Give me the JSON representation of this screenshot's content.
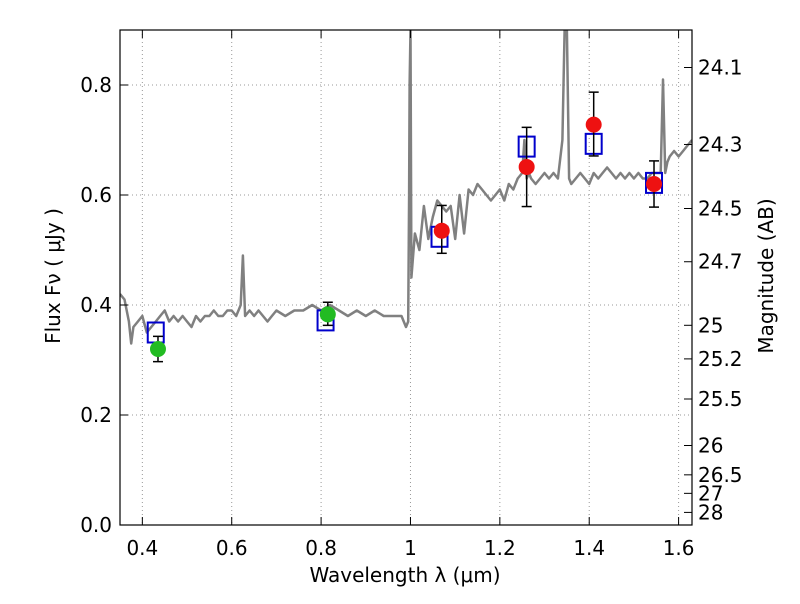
{
  "chart_data": {
    "type": "scatter",
    "xlabel": "Wavelength  λ (μm)",
    "ylabel": "Flux  Fν  ( μJy )",
    "y2label": "Magnitude (AB)",
    "xlim": [
      0.35,
      1.63
    ],
    "ylim": [
      0.0,
      0.9
    ],
    "x_ticks": [
      "0.4",
      "0.6",
      "0.8",
      "1",
      "1.2",
      "1.4",
      "1.6"
    ],
    "x_tick_values": [
      0.4,
      0.6,
      0.8,
      1.0,
      1.2,
      1.4,
      1.6
    ],
    "y_ticks": [
      "0.0",
      "0.2",
      "0.4",
      "0.6",
      "0.8"
    ],
    "y_tick_values": [
      0.0,
      0.2,
      0.4,
      0.6,
      0.8
    ],
    "mag_ticks": [
      "24.1",
      "24.3",
      "24.5",
      "24.7",
      "25",
      "25.2",
      "25.5",
      "26",
      "26.5",
      "27",
      "28"
    ],
    "mag_tick_values": [
      24.1,
      24.3,
      24.5,
      24.7,
      25.0,
      25.2,
      25.5,
      26.0,
      26.5,
      27.0,
      28.0
    ],
    "grid": true,
    "colors": {
      "model": "#808080",
      "square_marker": "#0000cc",
      "green_points": "#22bb22",
      "red_points": "#ee1111",
      "errorbar": "#000000",
      "grid": "#999999"
    },
    "model_spectrum": {
      "x": [
        0.35,
        0.36,
        0.37,
        0.375,
        0.38,
        0.39,
        0.4,
        0.41,
        0.42,
        0.43,
        0.44,
        0.45,
        0.46,
        0.47,
        0.48,
        0.49,
        0.5,
        0.51,
        0.52,
        0.53,
        0.54,
        0.55,
        0.56,
        0.57,
        0.58,
        0.59,
        0.6,
        0.61,
        0.62,
        0.625,
        0.63,
        0.64,
        0.65,
        0.66,
        0.67,
        0.68,
        0.69,
        0.7,
        0.72,
        0.74,
        0.76,
        0.78,
        0.8,
        0.82,
        0.84,
        0.86,
        0.88,
        0.9,
        0.92,
        0.94,
        0.96,
        0.98,
        0.99,
        0.995,
        0.997,
        0.998,
        1.0,
        1.002,
        1.005,
        1.01,
        1.02,
        1.03,
        1.04,
        1.05,
        1.06,
        1.07,
        1.08,
        1.09,
        1.1,
        1.11,
        1.12,
        1.13,
        1.14,
        1.15,
        1.16,
        1.17,
        1.18,
        1.19,
        1.2,
        1.21,
        1.22,
        1.23,
        1.24,
        1.25,
        1.255,
        1.26,
        1.265,
        1.27,
        1.28,
        1.29,
        1.3,
        1.31,
        1.32,
        1.33,
        1.34,
        1.345,
        1.35,
        1.355,
        1.36,
        1.37,
        1.38,
        1.39,
        1.4,
        1.41,
        1.42,
        1.43,
        1.44,
        1.45,
        1.46,
        1.47,
        1.48,
        1.49,
        1.5,
        1.51,
        1.52,
        1.53,
        1.54,
        1.55,
        1.56,
        1.565,
        1.57,
        1.575,
        1.58,
        1.59,
        1.6,
        1.61,
        1.62,
        1.63
      ],
      "y": [
        0.42,
        0.41,
        0.37,
        0.33,
        0.36,
        0.37,
        0.38,
        0.35,
        0.36,
        0.37,
        0.38,
        0.39,
        0.37,
        0.38,
        0.37,
        0.38,
        0.37,
        0.36,
        0.38,
        0.37,
        0.38,
        0.38,
        0.39,
        0.38,
        0.38,
        0.39,
        0.39,
        0.38,
        0.4,
        0.49,
        0.38,
        0.39,
        0.38,
        0.39,
        0.38,
        0.37,
        0.38,
        0.39,
        0.38,
        0.39,
        0.39,
        0.4,
        0.39,
        0.4,
        0.39,
        0.38,
        0.39,
        0.38,
        0.39,
        0.38,
        0.38,
        0.38,
        0.36,
        0.37,
        0.6,
        0.8,
        0.9,
        0.45,
        0.48,
        0.53,
        0.5,
        0.58,
        0.52,
        0.56,
        0.59,
        0.58,
        0.57,
        0.58,
        0.52,
        0.6,
        0.53,
        0.61,
        0.6,
        0.62,
        0.61,
        0.6,
        0.59,
        0.6,
        0.61,
        0.59,
        0.62,
        0.61,
        0.63,
        0.64,
        0.7,
        0.63,
        0.64,
        0.63,
        0.62,
        0.63,
        0.64,
        0.63,
        0.64,
        0.63,
        0.7,
        0.9,
        0.9,
        0.63,
        0.62,
        0.63,
        0.64,
        0.63,
        0.62,
        0.64,
        0.63,
        0.64,
        0.65,
        0.64,
        0.63,
        0.64,
        0.63,
        0.64,
        0.63,
        0.64,
        0.63,
        0.63,
        0.64,
        0.64,
        0.64,
        0.81,
        0.64,
        0.66,
        0.67,
        0.68,
        0.67,
        0.68,
        0.69,
        0.7
      ]
    },
    "series": [
      {
        "marker": "open-square",
        "x": [
          0.43,
          0.81,
          1.065,
          1.26,
          1.41,
          1.545
        ],
        "y": [
          0.35,
          0.372,
          0.524,
          0.688,
          0.693,
          0.622
        ]
      },
      {
        "marker": "filled-circle",
        "x": [
          0.435,
          0.815
        ],
        "y": [
          0.32,
          0.383
        ],
        "err_low": [
          0.023,
          0.02
        ],
        "err_high": [
          0.023,
          0.022
        ]
      },
      {
        "marker": "filled-circle",
        "x": [
          1.07,
          1.26,
          1.41,
          1.545
        ],
        "y": [
          0.535,
          0.651,
          0.728,
          0.62
        ],
        "err_low": [
          0.041,
          0.072,
          0.057,
          0.042
        ],
        "err_high": [
          0.046,
          0.072,
          0.059,
          0.042
        ]
      }
    ]
  }
}
